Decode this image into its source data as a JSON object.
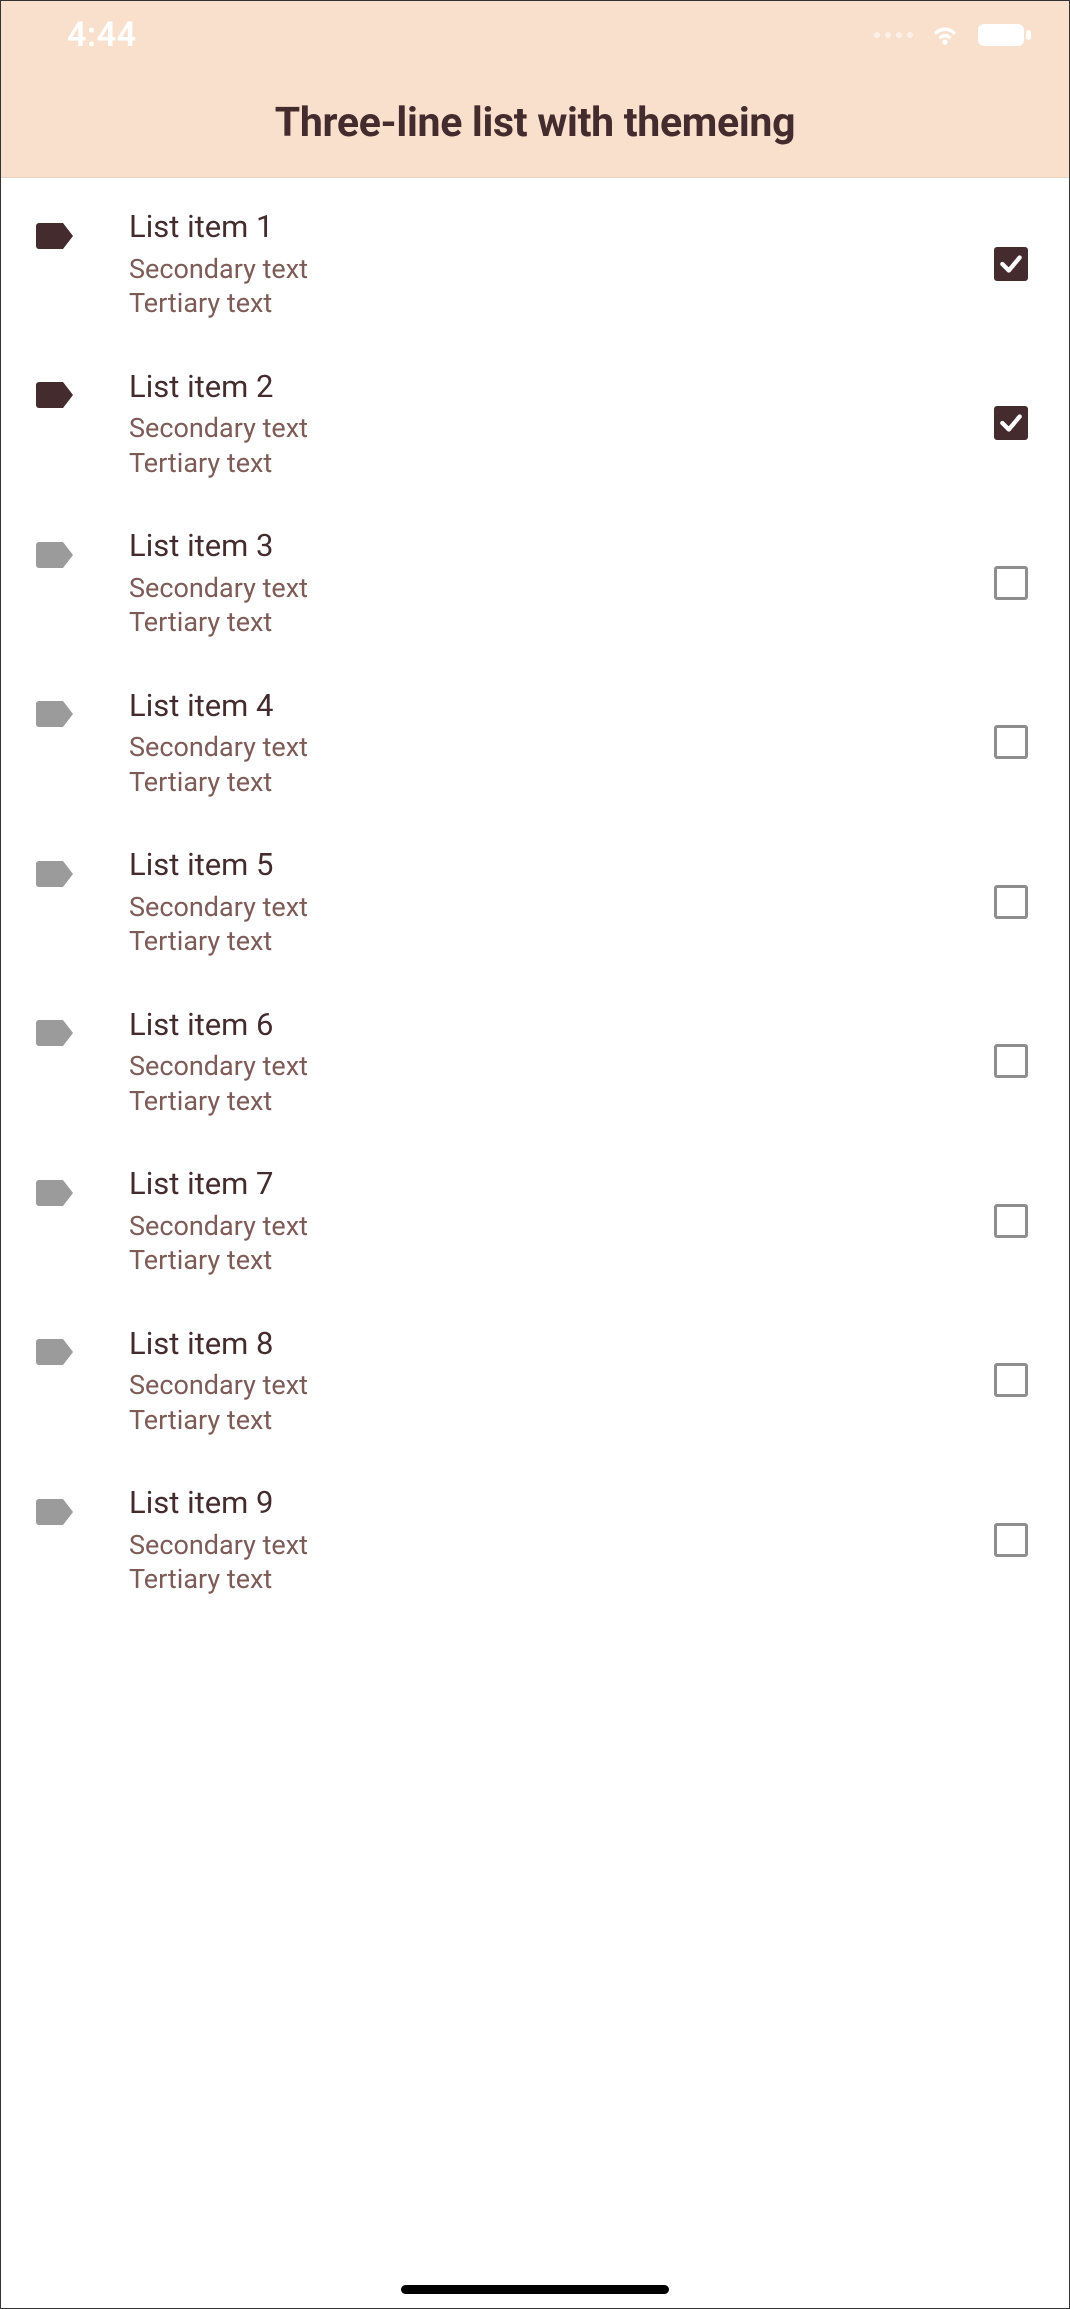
{
  "colors": {
    "header_bg": "#f9e0cd",
    "title_color": "#442b2d",
    "primary_text": "#442c2e",
    "secondary_text": "#7d5b57",
    "icon_active": "#442b2d",
    "icon_inactive": "#9b9b9b",
    "checkbox_border": "#8e8e8e",
    "checked_bg": "#442b2d",
    "status_fg": "#ffffff"
  },
  "status_bar": {
    "time": "4:44"
  },
  "app_bar": {
    "title": "Three-line list with themeing"
  },
  "list": {
    "items": [
      {
        "primary": "List item 1",
        "secondary": "Secondary text",
        "tertiary": "Tertiary text",
        "checked": true,
        "icon_active": true
      },
      {
        "primary": "List item 2",
        "secondary": "Secondary text",
        "tertiary": "Tertiary text",
        "checked": true,
        "icon_active": true
      },
      {
        "primary": "List item 3",
        "secondary": "Secondary text",
        "tertiary": "Tertiary text",
        "checked": false,
        "icon_active": false
      },
      {
        "primary": "List item 4",
        "secondary": "Secondary text",
        "tertiary": "Tertiary text",
        "checked": false,
        "icon_active": false
      },
      {
        "primary": "List item 5",
        "secondary": "Secondary text",
        "tertiary": "Tertiary text",
        "checked": false,
        "icon_active": false
      },
      {
        "primary": "List item 6",
        "secondary": "Secondary text",
        "tertiary": "Tertiary text",
        "checked": false,
        "icon_active": false
      },
      {
        "primary": "List item 7",
        "secondary": "Secondary text",
        "tertiary": "Tertiary text",
        "checked": false,
        "icon_active": false
      },
      {
        "primary": "List item 8",
        "secondary": "Secondary text",
        "tertiary": "Tertiary text",
        "checked": false,
        "icon_active": false
      },
      {
        "primary": "List item 9",
        "secondary": "Secondary text",
        "tertiary": "Tertiary text",
        "checked": false,
        "icon_active": false
      }
    ]
  }
}
